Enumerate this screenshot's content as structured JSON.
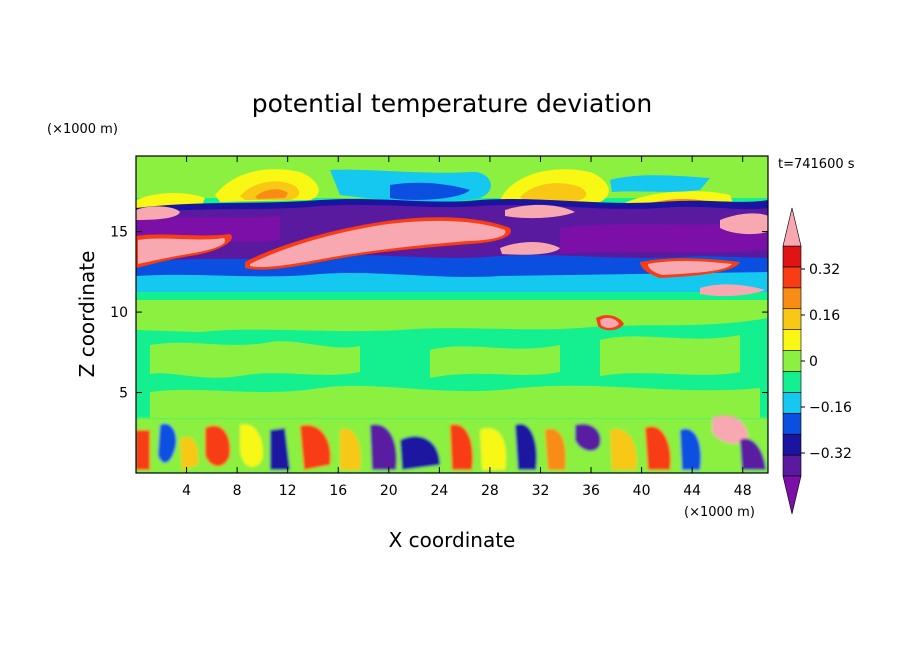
{
  "chart_data": {
    "type": "heatmap",
    "title": "potential temperature deviation",
    "xlabel": "X coordinate",
    "ylabel": "Z coordinate",
    "x_unit": "(×1000 m)",
    "y_unit": "(×1000 m)",
    "time_label": "t=741600 s",
    "xlim": [
      0,
      50
    ],
    "ylim": [
      0,
      19.7
    ],
    "x_ticks": [
      4,
      8,
      12,
      16,
      20,
      24,
      28,
      32,
      36,
      40,
      44,
      48
    ],
    "y_ticks": [
      5,
      10,
      15
    ],
    "colorbar": {
      "levels": [
        -0.48,
        -0.4,
        -0.32,
        -0.24,
        -0.16,
        -0.08,
        0,
        0.08,
        0.16,
        0.24,
        0.32,
        0.4,
        0.48
      ],
      "tick_values": [
        0.32,
        0.16,
        0,
        -0.16,
        -0.32
      ],
      "tick_labels": [
        "0.32",
        "0.16",
        "0",
        "−0.16",
        "−0.32"
      ],
      "colors": [
        "#7b0fa8",
        "#5a1aa0",
        "#1a14a0",
        "#0a4fe0",
        "#14c8f0",
        "#14f090",
        "#8cf040",
        "#f8f814",
        "#f8c814",
        "#f88c14",
        "#f83c14",
        "#e01414",
        "#f8a8b0"
      ],
      "extend": "both"
    },
    "bands": [
      {
        "z_range": [
          0,
          3.4
        ],
        "description": "boundary layer: mixed strong warm and cold anomalies"
      },
      {
        "z_range": [
          3.4,
          11.5
        ],
        "description": "weak anomalies near zero (green)"
      },
      {
        "z_range": [
          12,
          13.5
        ],
        "description": "cold anomaly layer (blue)"
      },
      {
        "z_range": [
          13.5,
          16.5
        ],
        "description": "strong warm (pink) and cold (purple) filaments"
      },
      {
        "z_range": [
          17,
          19
        ],
        "description": "warm patches (yellow-orange) with cyan/blue gaps"
      }
    ]
  }
}
